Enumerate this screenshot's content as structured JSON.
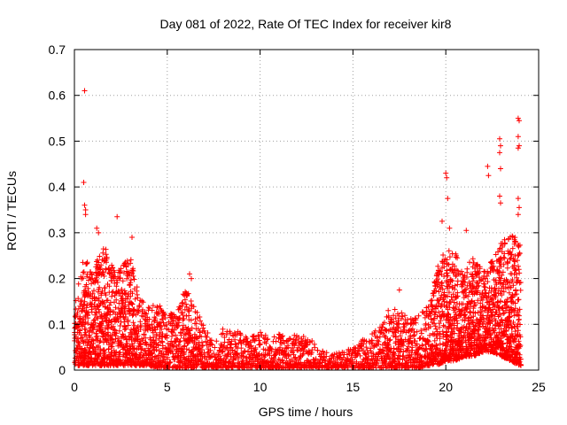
{
  "chart_data": {
    "type": "scatter",
    "title": "Day 081 of 2022, Rate Of TEC Index for receiver kir8",
    "xlabel": "GPS time / hours",
    "ylabel": "ROTI / TECUs",
    "xlim": [
      0,
      25
    ],
    "ylim": [
      0,
      0.7
    ],
    "x_ticks": [
      0,
      5,
      10,
      15,
      20,
      25
    ],
    "y_ticks": [
      0,
      0.1,
      0.2,
      0.3,
      0.4,
      0.5,
      0.6,
      0.7
    ],
    "x_tick_labels": [
      "0",
      "5",
      "10",
      "15",
      "20",
      "25"
    ],
    "y_tick_labels": [
      "0",
      "0.1",
      "0.2",
      "0.3",
      "0.4",
      "0.5",
      "0.6",
      "0.7"
    ],
    "grid": true,
    "marker": "+",
    "series_color": "#ff0000",
    "envelope": {
      "x": [
        0,
        0.5,
        1,
        1.5,
        2,
        2.5,
        3,
        3.5,
        4,
        4.5,
        5,
        5.5,
        6,
        6.5,
        7,
        7.5,
        8,
        8.5,
        9,
        9.5,
        10,
        10.5,
        11,
        11.5,
        12,
        12.5,
        13,
        13.5,
        14,
        14.5,
        15,
        15.5,
        16,
        16.5,
        17,
        17.5,
        18,
        18.5,
        19,
        19.5,
        20,
        20.5,
        21,
        21.5,
        22,
        22.5,
        23,
        23.5,
        24
      ],
      "y_max": [
        0.14,
        0.25,
        0.22,
        0.28,
        0.24,
        0.22,
        0.26,
        0.16,
        0.14,
        0.15,
        0.12,
        0.13,
        0.18,
        0.14,
        0.1,
        0.06,
        0.09,
        0.09,
        0.08,
        0.07,
        0.09,
        0.07,
        0.08,
        0.07,
        0.08,
        0.07,
        0.06,
        0.04,
        0.04,
        0.04,
        0.05,
        0.07,
        0.08,
        0.1,
        0.13,
        0.14,
        0.11,
        0.12,
        0.14,
        0.22,
        0.27,
        0.26,
        0.22,
        0.25,
        0.22,
        0.24,
        0.28,
        0.3,
        0.28
      ],
      "y_min": [
        0.01,
        0.01,
        0.01,
        0.01,
        0.01,
        0.01,
        0.01,
        0.01,
        0.01,
        0.005,
        0.005,
        0.005,
        0.005,
        0.005,
        0.005,
        0.005,
        0.005,
        0.005,
        0.005,
        0.005,
        0.005,
        0.005,
        0.005,
        0.005,
        0.005,
        0.005,
        0.005,
        0.005,
        0.005,
        0.005,
        0.005,
        0.005,
        0.005,
        0.005,
        0.005,
        0.005,
        0.005,
        0.005,
        0.01,
        0.01,
        0.02,
        0.02,
        0.03,
        0.03,
        0.04,
        0.04,
        0.03,
        0.02,
        0.01
      ]
    },
    "outliers": [
      {
        "x": 0.55,
        "y": 0.61
      },
      {
        "x": 0.5,
        "y": 0.41
      },
      {
        "x": 0.55,
        "y": 0.36
      },
      {
        "x": 0.6,
        "y": 0.35
      },
      {
        "x": 0.6,
        "y": 0.34
      },
      {
        "x": 2.3,
        "y": 0.335
      },
      {
        "x": 1.2,
        "y": 0.31
      },
      {
        "x": 1.3,
        "y": 0.3
      },
      {
        "x": 3.1,
        "y": 0.29
      },
      {
        "x": 6.2,
        "y": 0.21
      },
      {
        "x": 6.3,
        "y": 0.2
      },
      {
        "x": 19.8,
        "y": 0.325
      },
      {
        "x": 20.0,
        "y": 0.43
      },
      {
        "x": 20.05,
        "y": 0.42
      },
      {
        "x": 20.1,
        "y": 0.375
      },
      {
        "x": 20.2,
        "y": 0.31
      },
      {
        "x": 22.25,
        "y": 0.445
      },
      {
        "x": 22.3,
        "y": 0.425
      },
      {
        "x": 22.9,
        "y": 0.505
      },
      {
        "x": 22.95,
        "y": 0.49
      },
      {
        "x": 22.9,
        "y": 0.475
      },
      {
        "x": 22.95,
        "y": 0.44
      },
      {
        "x": 22.9,
        "y": 0.38
      },
      {
        "x": 22.95,
        "y": 0.365
      },
      {
        "x": 23.9,
        "y": 0.55
      },
      {
        "x": 23.95,
        "y": 0.545
      },
      {
        "x": 23.9,
        "y": 0.51
      },
      {
        "x": 23.95,
        "y": 0.49
      },
      {
        "x": 23.9,
        "y": 0.485
      },
      {
        "x": 23.9,
        "y": 0.375
      },
      {
        "x": 23.95,
        "y": 0.355
      },
      {
        "x": 23.9,
        "y": 0.34
      },
      {
        "x": 21.1,
        "y": 0.305
      },
      {
        "x": 16.9,
        "y": 0.13
      },
      {
        "x": 17.5,
        "y": 0.175
      }
    ]
  }
}
